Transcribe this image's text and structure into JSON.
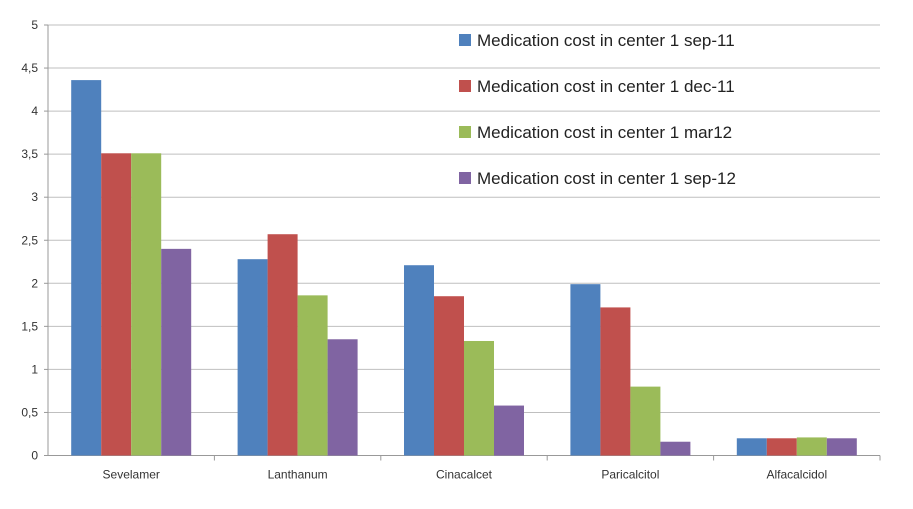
{
  "chart_data": {
    "type": "bar",
    "title": "",
    "xlabel": "",
    "ylabel": "",
    "ylim": [
      0,
      5
    ],
    "grid": true,
    "legend_position": "top-right",
    "yticks": [
      "0",
      "0,5",
      "1",
      "1,5",
      "2",
      "2,5",
      "3",
      "3,5",
      "4",
      "4,5",
      "5"
    ],
    "categories": [
      "Sevelamer",
      "Lanthanum",
      "Cinacalcet",
      "Paricalcitol",
      "Alfacalcidol"
    ],
    "series": [
      {
        "name": "Medication cost in center 1 sep-11",
        "color": "#4f81bd",
        "values": [
          4.36,
          2.28,
          2.21,
          1.99,
          0.2
        ]
      },
      {
        "name": "Medication cost in center 1 dec-11",
        "color": "#c0504d",
        "values": [
          3.51,
          2.57,
          1.85,
          1.72,
          0.2
        ]
      },
      {
        "name": "Medication cost in center 1 mar12",
        "color": "#9bbb59",
        "values": [
          3.51,
          1.86,
          1.33,
          0.8,
          0.21
        ]
      },
      {
        "name": "Medication cost in center 1 sep-12",
        "color": "#8064a2",
        "values": [
          2.4,
          1.35,
          0.58,
          0.16,
          0.2
        ]
      }
    ]
  }
}
